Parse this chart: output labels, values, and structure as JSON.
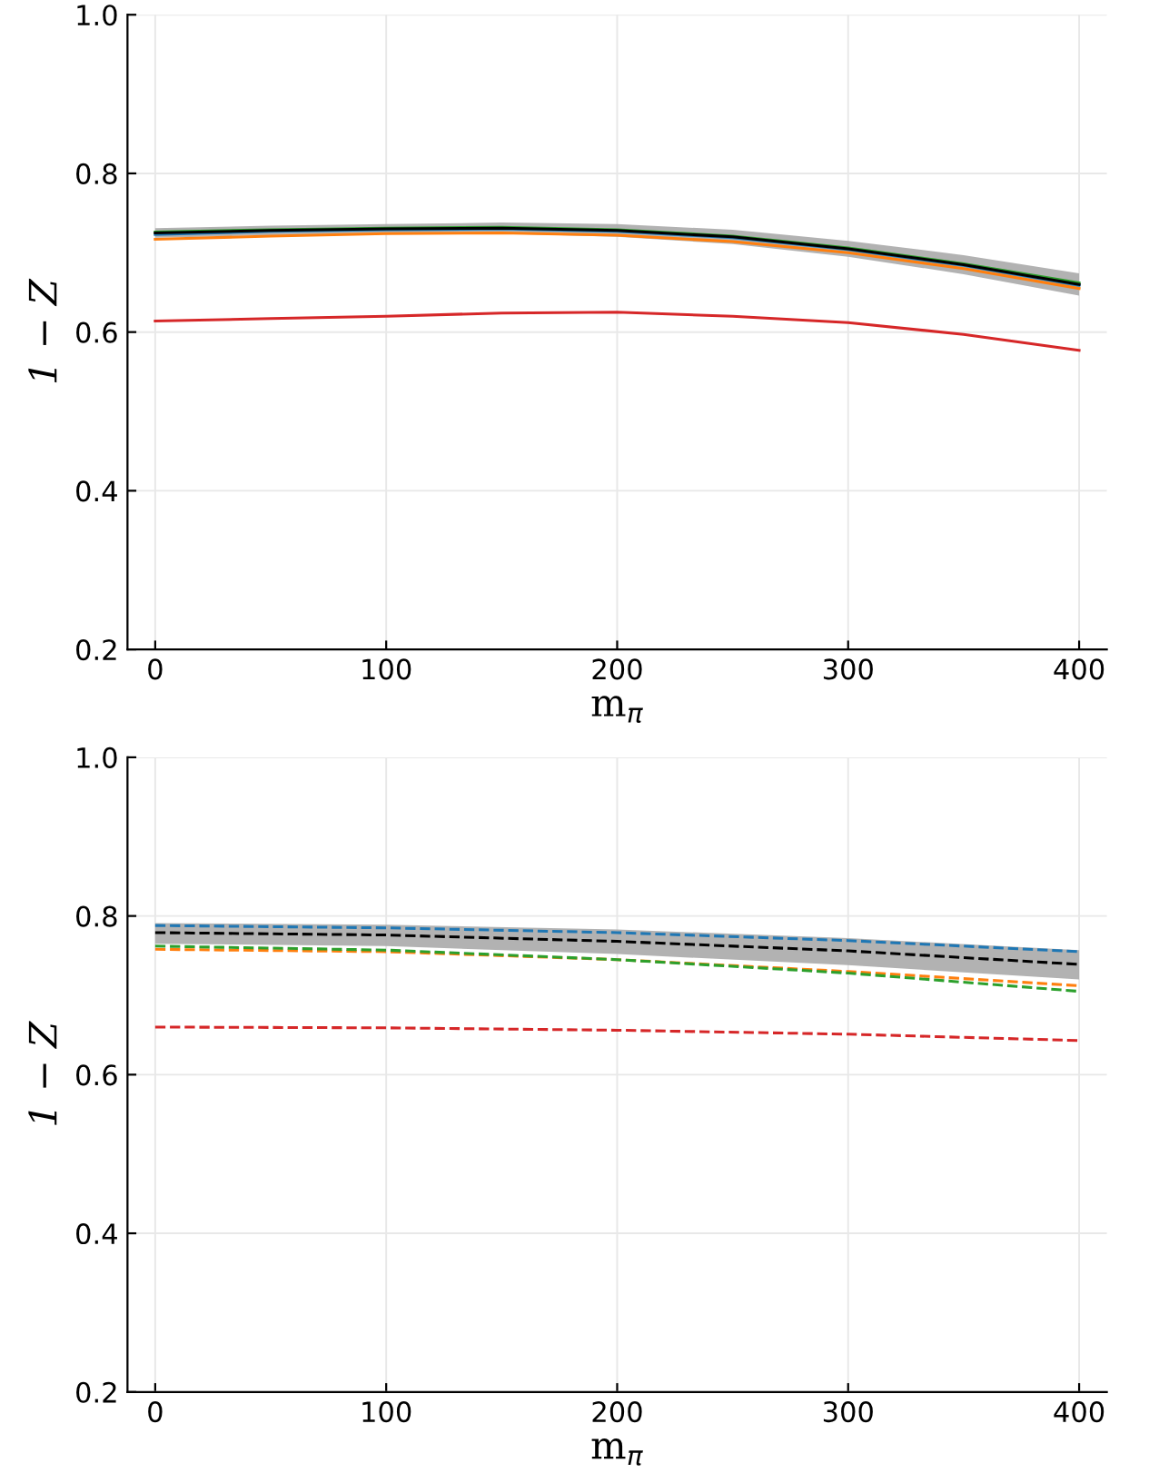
{
  "chart_data": [
    {
      "type": "line",
      "xlabel": "m$_{π}$",
      "ylabel": "1 − Z",
      "xlim": [
        -12,
        412
      ],
      "ylim": [
        0.2,
        1.0
      ],
      "xticks": [
        0,
        100,
        200,
        300,
        400
      ],
      "yticks": [
        0.2,
        0.4,
        0.6,
        0.8,
        {
          "value": 1,
          "label": "1.0"
        }
      ],
      "grid": true,
      "line_style": "solid",
      "x": [
        0,
        50,
        100,
        150,
        200,
        250,
        300,
        350,
        400
      ],
      "series": [
        {
          "color": "#d62728",
          "values": [
            0.614,
            0.617,
            0.62,
            0.624,
            0.625,
            0.62,
            0.612,
            0.597,
            0.577
          ]
        },
        {
          "color": "#ff7f0e",
          "values": [
            0.717,
            0.721,
            0.724,
            0.725,
            0.722,
            0.714,
            0.7,
            0.68,
            0.655
          ]
        },
        {
          "color": "#1f77b4",
          "values": [
            0.723,
            0.727,
            0.729,
            0.73,
            0.727,
            0.719,
            0.704,
            0.684,
            0.659
          ]
        },
        {
          "color": "#2ca02c",
          "values": [
            0.726,
            0.729,
            0.731,
            0.732,
            0.729,
            0.721,
            0.706,
            0.686,
            0.662
          ]
        },
        {
          "color": "#000000",
          "values": [
            0.725,
            0.728,
            0.73,
            0.731,
            0.728,
            0.72,
            0.705,
            0.685,
            0.66
          ],
          "lower": [
            0.719,
            0.722,
            0.724,
            0.724,
            0.72,
            0.711,
            0.695,
            0.673,
            0.646
          ],
          "upper": [
            0.731,
            0.734,
            0.736,
            0.738,
            0.736,
            0.729,
            0.715,
            0.697,
            0.674
          ]
        }
      ]
    },
    {
      "type": "line",
      "xlabel": "m$_{π}$",
      "ylabel": "1 − Z",
      "xlim": [
        -12,
        412
      ],
      "ylim": [
        0.2,
        1.0
      ],
      "xticks": [
        0,
        100,
        200,
        300,
        400
      ],
      "yticks": [
        0.2,
        0.4,
        0.6,
        0.8,
        {
          "value": 1,
          "label": "1.0"
        }
      ],
      "grid": true,
      "line_style": "dashed",
      "x": [
        0,
        100,
        200,
        300,
        400
      ],
      "series": [
        {
          "color": "#d62728",
          "values": [
            0.66,
            0.659,
            0.656,
            0.651,
            0.643
          ]
        },
        {
          "color": "#ff7f0e",
          "values": [
            0.758,
            0.755,
            0.745,
            0.73,
            0.712
          ]
        },
        {
          "color": "#2ca02c",
          "values": [
            0.762,
            0.757,
            0.745,
            0.728,
            0.705
          ]
        },
        {
          "color": "#1f77b4",
          "values": [
            0.788,
            0.785,
            0.779,
            0.769,
            0.755
          ]
        },
        {
          "color": "#000000",
          "values": [
            0.779,
            0.776,
            0.768,
            0.756,
            0.739
          ],
          "lower": [
            0.765,
            0.762,
            0.752,
            0.738,
            0.72
          ],
          "upper": [
            0.791,
            0.789,
            0.783,
            0.772,
            0.757
          ]
        }
      ]
    }
  ]
}
